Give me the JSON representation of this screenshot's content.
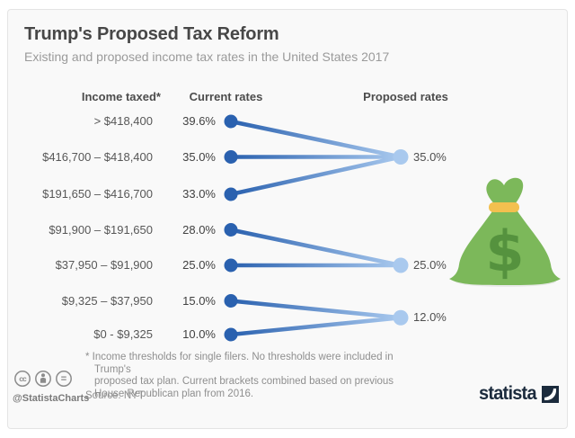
{
  "header": {
    "title": "Trump's Proposed Tax Reform",
    "subtitle": "Existing and proposed income tax rates in the United States 2017"
  },
  "chart_data": {
    "type": "line",
    "subtype": "slope-chart",
    "columns": {
      "bracket": "Income taxed*",
      "current": "Current rates",
      "proposed": "Proposed rates"
    },
    "rows": [
      {
        "bracket": "> $418,400",
        "current": "39.6%",
        "current_value": 39.6
      },
      {
        "bracket": "$416,700 – $418,400",
        "current": "35.0%",
        "current_value": 35.0
      },
      {
        "bracket": "$191,650 – $416,700",
        "current": "33.0%",
        "current_value": 33.0
      },
      {
        "bracket": "$91,900 – $191,650",
        "current": "28.0%",
        "current_value": 28.0
      },
      {
        "bracket": "$37,950 – $91,900",
        "current": "25.0%",
        "current_value": 25.0
      },
      {
        "bracket": "$9,325 – $37,950",
        "current": "15.0%",
        "current_value": 15.0
      },
      {
        "bracket": "$0 - $9,325",
        "current": "10.0%",
        "current_value": 10.0
      }
    ],
    "proposed": [
      {
        "label": "35.0%",
        "value": 35.0,
        "from_rows": [
          0,
          1,
          2
        ],
        "row_anchor": 1
      },
      {
        "label": "25.0%",
        "value": 25.0,
        "from_rows": [
          3,
          4
        ],
        "row_anchor": 4
      },
      {
        "label": "12.0%",
        "value": 12.0,
        "from_rows": [
          5,
          6
        ],
        "row_anchor": 5.5
      }
    ],
    "colors": {
      "current_dot": "#2a61af",
      "proposed_dot": "#a9c9ee",
      "line_start": "#2a61af",
      "line_end": "#a9c9ee"
    }
  },
  "footnote": {
    "lines": {
      "0": "* Income thresholds for single filers. No thresholds were included in Trump's",
      "1": "proposed tax plan. Current brackets combined based on previous",
      "2": "House Republican plan from 2016."
    },
    "source": "Source: NYT"
  },
  "branding": {
    "credit": "@StatistaCharts",
    "logo_text": "statista",
    "logo_color": "#1c2b3d",
    "cc_glyph": "cc",
    "nd_glyph": "=",
    "icons": [
      "cc-icon",
      "attribution-icon",
      "no-derivatives-icon"
    ]
  },
  "illustration": {
    "name": "money-bag",
    "bag_color": "#7cb85a",
    "dollar_color": "#55923e",
    "tie_color": "#f3c04f",
    "shadow_color": "#e9e9e9",
    "dollar_glyph": "$"
  }
}
